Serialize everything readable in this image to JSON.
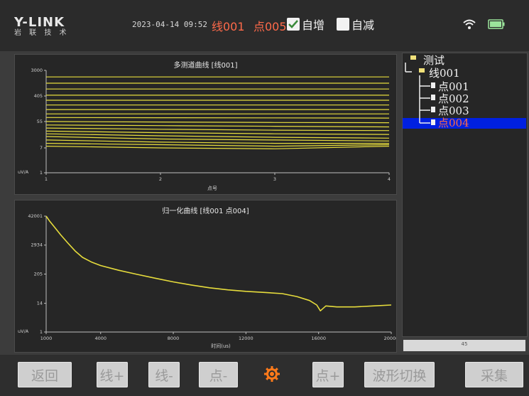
{
  "header": {
    "logo_main": "Y-LINK",
    "logo_sub": "岩 联 技 术",
    "datetime": "2023-04-14 09:52",
    "current_line": "线001",
    "current_point": "点005",
    "auto_increment": {
      "label": "自增",
      "checked": true
    },
    "auto_decrement": {
      "label": "自减",
      "checked": false
    },
    "icons": [
      "wifi-icon",
      "battery-icon"
    ]
  },
  "chart_top": {
    "title": "多测道曲线 [线001]",
    "ylabel": "uV/A",
    "xlabel": "点号"
  },
  "chart_bottom": {
    "title": "归一化曲线 [线001 点004]",
    "ylabel": "uV/A",
    "xlabel": "时间(us)"
  },
  "chart_data": [
    {
      "type": "line",
      "title": "多测道曲线 [线001]",
      "xlabel": "点号",
      "ylabel": "uV/A",
      "x": [
        1,
        2,
        3,
        4
      ],
      "xticks": [
        "1",
        "2",
        "3",
        "4"
      ],
      "yticks": [
        "3000",
        "405",
        "55",
        "7",
        "1"
      ],
      "yscale": "log",
      "ylim": [
        1,
        3000
      ],
      "grid": false,
      "series": [
        {
          "values": [
            1800,
            1800,
            1800,
            1800
          ]
        },
        {
          "values": [
            1100,
            1100,
            1100,
            1100
          ]
        },
        {
          "values": [
            700,
            700,
            700,
            700
          ]
        },
        {
          "values": [
            430,
            430,
            430,
            430
          ]
        },
        {
          "values": [
            290,
            290,
            290,
            290
          ]
        },
        {
          "values": [
            200,
            200,
            200,
            200
          ]
        },
        {
          "values": [
            140,
            140,
            140,
            140
          ]
        },
        {
          "values": [
            100,
            100,
            100,
            100
          ]
        },
        {
          "values": [
            75,
            74,
            73,
            72
          ]
        },
        {
          "values": [
            55,
            53,
            51,
            50
          ]
        },
        {
          "values": [
            42,
            40,
            38,
            36
          ]
        },
        {
          "values": [
            33,
            30,
            28,
            27
          ]
        },
        {
          "values": [
            26,
            23,
            21,
            20
          ]
        },
        {
          "values": [
            21,
            18,
            16,
            15
          ]
        },
        {
          "values": [
            17,
            14,
            13,
            12
          ]
        },
        {
          "values": [
            13,
            11,
            10,
            10
          ]
        },
        {
          "values": [
            10,
            9,
            8,
            9
          ]
        },
        {
          "values": [
            8,
            7,
            6.5,
            8
          ]
        }
      ]
    },
    {
      "type": "line",
      "title": "归一化曲线 [线001 点004]",
      "xlabel": "时间(us)",
      "ylabel": "uV/A",
      "xticks": [
        "1000",
        "4000",
        "8000",
        "12000",
        "16000",
        "20000"
      ],
      "yticks": [
        "42001",
        "2934",
        "205",
        "14",
        "1"
      ],
      "xlim": [
        1000,
        20000
      ],
      "yscale": "log",
      "ylim": [
        1,
        42001
      ],
      "grid": false,
      "series": [
        {
          "x": [
            1000,
            1200,
            1500,
            1800,
            2200,
            2600,
            3000,
            3500,
            4000,
            5000,
            6000,
            7000,
            8000,
            9000,
            10000,
            11000,
            12000,
            13000,
            14000,
            14800,
            15500,
            15900,
            16100,
            16400,
            17000,
            18000,
            19000,
            20000
          ],
          "y": [
            42001,
            26000,
            14000,
            7500,
            3500,
            1700,
            950,
            620,
            450,
            290,
            200,
            140,
            100,
            75,
            58,
            48,
            42,
            38,
            34,
            26,
            18,
            12,
            7,
            11,
            10,
            10,
            11,
            12
          ]
        }
      ]
    }
  ],
  "tree": {
    "root": "测试",
    "line": "线001",
    "points": [
      "点001",
      "点002",
      "点003",
      "点004"
    ],
    "selected_index": 3,
    "scrollbar_label": "45"
  },
  "buttons": {
    "back": "返回",
    "line_plus": "线+",
    "line_minus": "线-",
    "point_minus": "点-",
    "settings_icon": "gear-icon",
    "point_plus": "点+",
    "switch_waveform": "波形切换",
    "collect": "采集"
  },
  "colors": {
    "curve": "#e6dc3c",
    "selection": "#0020e0",
    "highlight_text": "#ff6a4a",
    "gear": "#ff7a1a"
  }
}
